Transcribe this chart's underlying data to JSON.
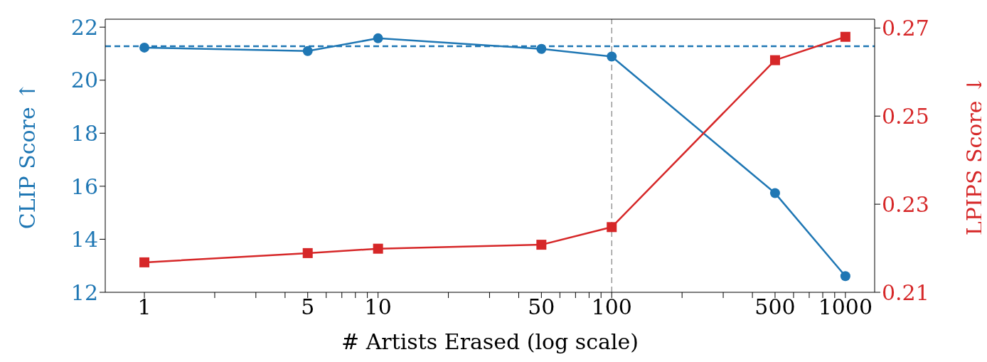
{
  "chart_data": {
    "type": "line",
    "xlabel": "# Artists Erased (log scale)",
    "ylabel": "CLIP Score ↑",
    "y2label": "LPIPS Score ↓",
    "log": "x",
    "grid": false,
    "legend": false,
    "line_style": "solid",
    "x": [
      1,
      5,
      10,
      50,
      100,
      500,
      1000
    ],
    "series": [
      {
        "color": "#1f77b4",
        "marker": "circle",
        "values": [
          21.23,
          21.1,
          21.58,
          21.18,
          20.89,
          15.74,
          12.61
        ]
      },
      {
        "color": "#d62728",
        "marker": "square",
        "axis": "y2",
        "values": [
          0.2168,
          0.2189,
          0.2199,
          0.2208,
          0.2248,
          0.2627,
          0.268
        ]
      }
    ],
    "xlim": [
      0.68,
      1334
    ],
    "xticks": [
      1,
      {
        "value": 2,
        "label": null
      },
      {
        "value": 3,
        "label": null
      },
      {
        "value": 4,
        "label": null
      },
      5,
      {
        "value": 6,
        "label": null
      },
      {
        "value": 7,
        "label": null
      },
      {
        "value": 8,
        "label": null
      },
      {
        "value": 9,
        "label": null
      },
      10,
      {
        "value": 20,
        "label": null
      },
      {
        "value": 30,
        "label": null
      },
      {
        "value": 40,
        "label": null
      },
      50,
      {
        "value": 60,
        "label": null
      },
      {
        "value": 70,
        "label": null
      },
      {
        "value": 80,
        "label": null
      },
      {
        "value": 90,
        "label": null
      },
      100,
      {
        "value": 200,
        "label": null
      },
      {
        "value": 300,
        "label": null
      },
      {
        "value": 400,
        "label": null
      },
      500,
      {
        "value": 600,
        "label": null
      },
      {
        "value": 700,
        "label": null
      },
      {
        "value": 800,
        "label": null
      },
      {
        "value": 900,
        "label": null
      },
      1000
    ],
    "ylim": [
      12,
      22.3
    ],
    "yticks": [
      12,
      14,
      16,
      18,
      20,
      22
    ],
    "y2lim": [
      0.21,
      0.272
    ],
    "y2ticks": [
      {
        "value": 0.21,
        "label": "0.21"
      },
      {
        "value": 0.23,
        "label": "0.23"
      },
      {
        "value": 0.25,
        "label": "0.25"
      },
      {
        "value": 0.27,
        "label": "0.27"
      }
    ],
    "ref_lines": [
      {
        "axis": "y",
        "value": 21.28,
        "color": "#1f77b4",
        "line_style": "dashed"
      },
      {
        "axis": "x",
        "value": 100,
        "color": "#808080",
        "line_style": "dashed"
      }
    ]
  }
}
